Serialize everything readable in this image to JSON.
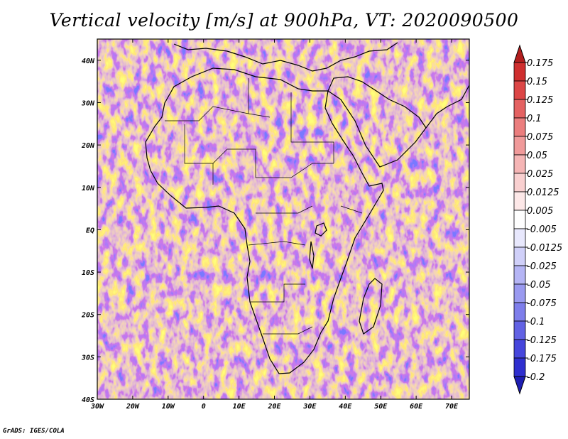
{
  "title": "Vertical velocity [m/s] at 900hPa, VT: 2020090500",
  "credit": "GrADS: IGES/COLA",
  "map": {
    "lon_range": [
      -30,
      75
    ],
    "lat_range": [
      -40,
      45
    ],
    "lat_ticks": [
      "40N",
      "30N",
      "20N",
      "10N",
      "EQ",
      "10S",
      "20S",
      "30S",
      "40S"
    ],
    "lon_ticks": [
      "30W",
      "20W",
      "10W",
      "0",
      "10E",
      "20E",
      "30E",
      "40E",
      "50E",
      "60E",
      "70E"
    ],
    "field_palette": {
      "positive": "#e05050",
      "negative": "#5050d8"
    }
  },
  "colorbar": {
    "labels": [
      "0.175",
      "0.15",
      "0.125",
      "0.1",
      "0.075",
      "0.05",
      "0.025",
      "0.0125",
      "0.005",
      "-0.005",
      "-0.0125",
      "-0.025",
      "-0.05",
      "-0.075",
      "-0.1",
      "-0.125",
      "-0.175",
      "-0.2"
    ],
    "colors": [
      "#b21e1e",
      "#cf2f2f",
      "#dc4646",
      "#e46262",
      "#eb7e7e",
      "#f09a9a",
      "#f5b5b5",
      "#f9d0d0",
      "#fde8e8",
      "#ffffff",
      "#e8e8fd",
      "#d0d0f9",
      "#b5b5f5",
      "#9a9af0",
      "#7e7eeb",
      "#6262e4",
      "#4646dc",
      "#2f2fcf",
      "#1e1eb2"
    ]
  }
}
